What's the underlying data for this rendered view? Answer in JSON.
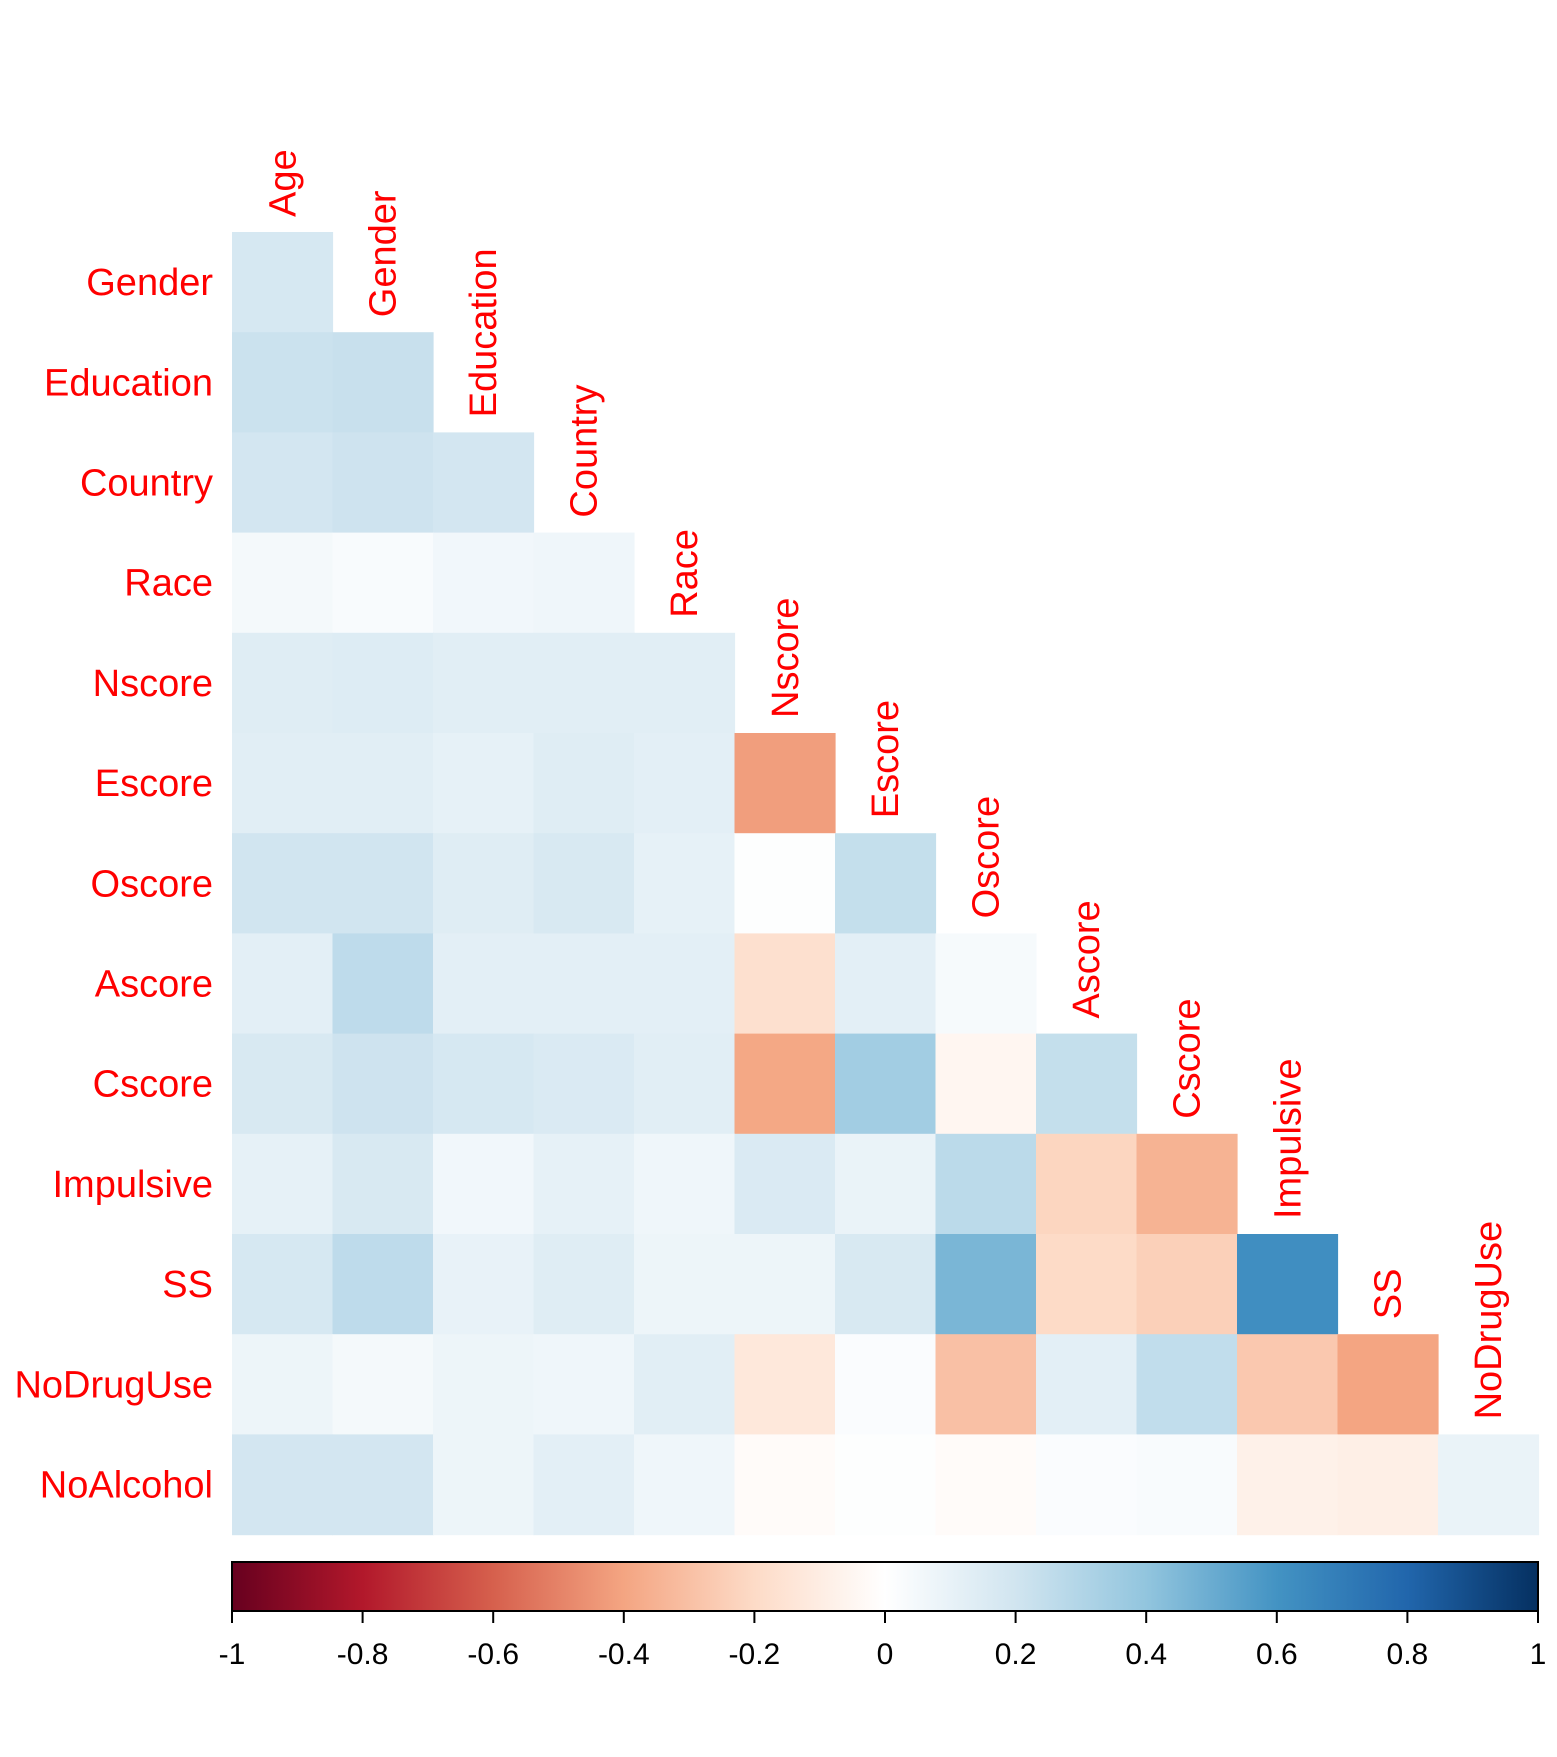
{
  "chart_data": {
    "type": "heatmap",
    "title": "",
    "column_labels": [
      "Age",
      "Gender",
      "Education",
      "Country",
      "Race",
      "Nscore",
      "Escore",
      "Oscore",
      "Ascore",
      "Cscore",
      "Impulsive",
      "SS",
      "NoDrugUse"
    ],
    "row_labels": [
      "Gender",
      "Education",
      "Country",
      "Race",
      "Nscore",
      "Escore",
      "Oscore",
      "Ascore",
      "Cscore",
      "Impulsive",
      "SS",
      "NoDrugUse",
      "NoAlcohol"
    ],
    "values": [
      [
        0.18
      ],
      [
        0.22,
        0.23
      ],
      [
        0.19,
        0.21,
        0.19
      ],
      [
        0.05,
        0.03,
        0.06,
        0.07
      ],
      [
        0.14,
        0.15,
        0.13,
        0.13,
        0.13
      ],
      [
        0.13,
        0.13,
        0.11,
        0.14,
        0.12,
        -0.42
      ],
      [
        0.2,
        0.2,
        0.14,
        0.17,
        0.11,
        0.01,
        0.24
      ],
      [
        0.12,
        0.26,
        0.12,
        0.12,
        0.12,
        -0.17,
        0.12,
        0.04
      ],
      [
        0.17,
        0.21,
        0.18,
        0.16,
        0.13,
        -0.39,
        0.35,
        -0.05,
        0.24
      ],
      [
        0.11,
        0.17,
        0.06,
        0.11,
        0.07,
        0.16,
        0.09,
        0.27,
        -0.22,
        -0.35
      ],
      [
        0.18,
        0.26,
        0.1,
        0.14,
        0.08,
        0.08,
        0.17,
        0.46,
        -0.2,
        -0.24,
        0.62
      ],
      [
        0.08,
        0.05,
        0.08,
        0.07,
        0.13,
        -0.13,
        0.02,
        -0.3,
        0.12,
        0.25,
        -0.27,
        -0.4
      ],
      [
        0.19,
        0.19,
        0.08,
        0.12,
        0.07,
        -0.02,
        0.01,
        -0.02,
        0.02,
        0.03,
        -0.08,
        -0.09,
        0.09
      ]
    ],
    "colorbar": {
      "min": -1,
      "max": 1,
      "tick_labels": [
        "-1",
        "-0.8",
        "-0.6",
        "-0.4",
        "-0.2",
        "0",
        "0.2",
        "0.4",
        "0.6",
        "0.8",
        "1"
      ],
      "colors": [
        "#67001F",
        "#B2182B",
        "#D6604D",
        "#F4A582",
        "#FDDBC7",
        "#FFFFFF",
        "#D1E5F0",
        "#92C5DE",
        "#4393C3",
        "#2166AC",
        "#053061"
      ]
    },
    "label_color": "#FF0000",
    "layout": "lower-triangle"
  }
}
